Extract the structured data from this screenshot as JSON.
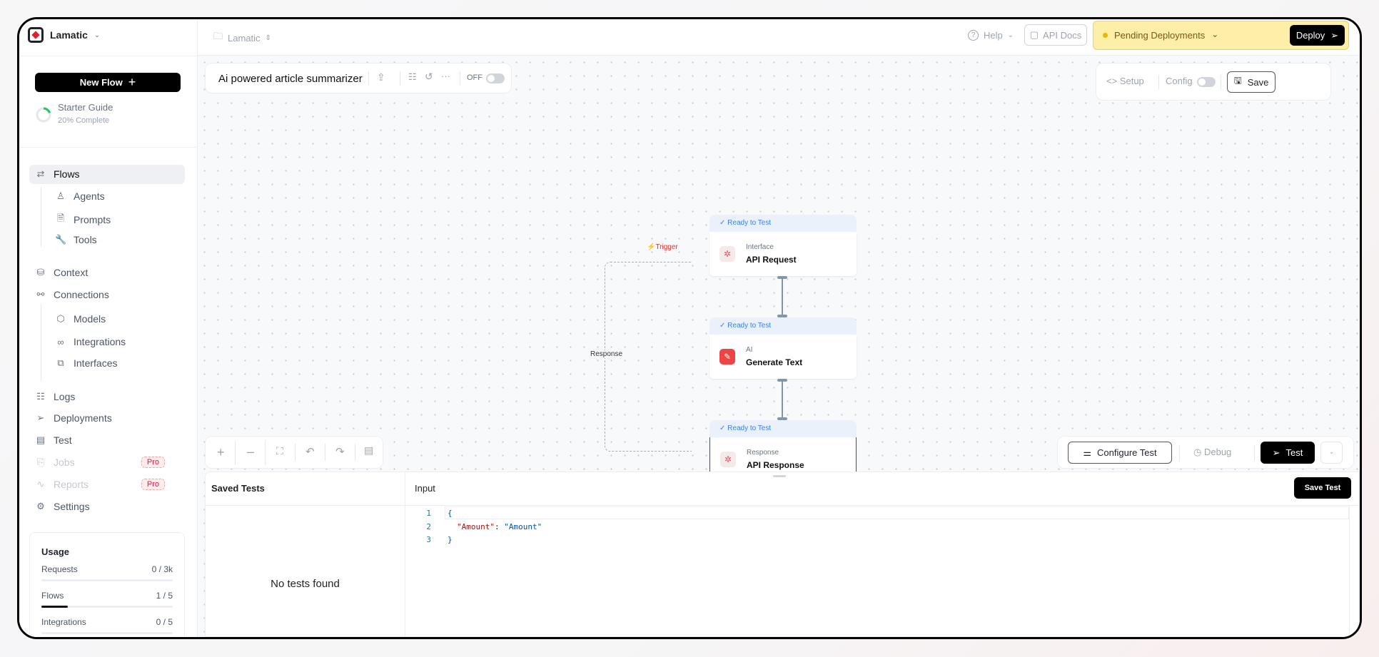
{
  "workspace": {
    "name": "Lamatic"
  },
  "sidebar": {
    "new_flow": "New Flow",
    "starter_guide": {
      "title": "Starter Guide",
      "progress_label": "20% Complete",
      "progress": 0.2
    },
    "items": [
      {
        "label": "Flows",
        "icon": "flows-icon",
        "active": true
      },
      {
        "label": "Agents",
        "icon": "robot-icon"
      },
      {
        "label": "Prompts",
        "icon": "document-icon"
      },
      {
        "label": "Tools",
        "icon": "wrench-icon"
      },
      {
        "label": "Context",
        "icon": "database-icon"
      },
      {
        "label": "Connections",
        "icon": "connection-icon"
      },
      {
        "label": "Models",
        "icon": "cube-icon"
      },
      {
        "label": "Integrations",
        "icon": "link-icon"
      },
      {
        "label": "Interfaces",
        "icon": "puzzle-icon"
      },
      {
        "label": "Logs",
        "icon": "list-icon"
      },
      {
        "label": "Deployments",
        "icon": "send-icon"
      },
      {
        "label": "Test",
        "icon": "table-icon"
      },
      {
        "label": "Jobs",
        "icon": "jobs-icon",
        "badge": "Pro",
        "disabled": true
      },
      {
        "label": "Reports",
        "icon": "activity-icon",
        "badge": "Pro",
        "disabled": true
      },
      {
        "label": "Settings",
        "icon": "gear-icon"
      }
    ],
    "usage": {
      "title": "Usage",
      "rows": [
        {
          "label": "Requests",
          "value": "0 / 3k",
          "fraction": 0
        },
        {
          "label": "Flows",
          "value": "1 / 5",
          "fraction": 0.2
        },
        {
          "label": "Integrations",
          "value": "0 / 5",
          "fraction": 0
        }
      ]
    }
  },
  "header": {
    "project": "Lamatic",
    "help": "Help",
    "api_docs": "API Docs",
    "pending": "Pending Deployments",
    "deploy": "Deploy",
    "pending_color": "#fdeea8"
  },
  "flow_toolbar": {
    "title": "Ai powered article summarizer",
    "toggle_label": "OFF"
  },
  "right_toolbar": {
    "setup": "Setup",
    "config": "Config",
    "save": "Save"
  },
  "nodes": [
    {
      "status": "Ready to Test",
      "type": "Interface",
      "name": "API Request"
    },
    {
      "status": "Ready to Test",
      "type": "AI",
      "name": "Generate Text"
    },
    {
      "status": "Ready to Test",
      "type": "Response",
      "name": "API Response"
    }
  ],
  "edges": {
    "trigger": "Trigger",
    "response": "Response"
  },
  "test_toolbar": {
    "configure": "Configure Test",
    "debug": "Debug",
    "test": "Test"
  },
  "panel": {
    "saved_tests": "Saved Tests",
    "empty": "No tests found",
    "input": "Input",
    "save_test": "Save Test",
    "code": [
      {
        "n": "1",
        "text": "{"
      },
      {
        "n": "2",
        "key": "\"Amount\"",
        "sep": ": ",
        "val": "\"Amount\""
      },
      {
        "n": "3",
        "text": "}"
      }
    ]
  }
}
